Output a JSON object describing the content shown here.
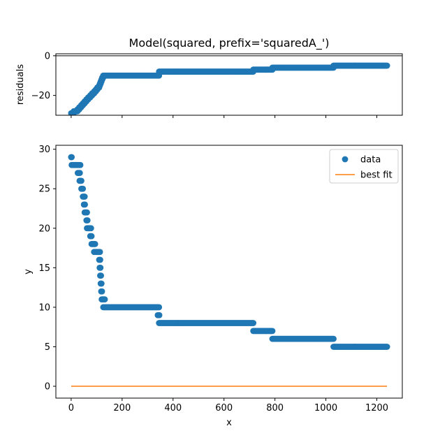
{
  "chart_data": [
    {
      "type": "scatter",
      "title": "Model(squared, prefix='squaredA_')",
      "xlabel": "",
      "ylabel": "residuals",
      "xlim": [
        -60,
        1300
      ],
      "ylim": [
        -30,
        1
      ],
      "xticks": [
        0,
        200,
        400,
        600,
        800,
        1000,
        1200
      ],
      "xtick_labels_visible": false,
      "yticks": [
        0,
        -20
      ],
      "ytick_labels": [
        "0",
        "−20"
      ],
      "zero_line": true,
      "series": [
        {
          "name": "",
          "color": "#1f77b4",
          "marker": "circle",
          "segments": [
            {
              "x_start": 0,
              "x_end": 10,
              "y": -29
            },
            {
              "x_start": 10,
              "x_end": 25,
              "y": -28
            },
            {
              "x_start": 25,
              "x_end": 32,
              "y": -27
            },
            {
              "x_start": 32,
              "x_end": 39,
              "y": -26
            },
            {
              "x_start": 39,
              "x_end": 46,
              "y": -25
            },
            {
              "x_start": 46,
              "x_end": 53,
              "y": -24
            },
            {
              "x_start": 53,
              "x_end": 60,
              "y": -23
            },
            {
              "x_start": 60,
              "x_end": 67,
              "y": -22
            },
            {
              "x_start": 67,
              "x_end": 75,
              "y": -21
            },
            {
              "x_start": 75,
              "x_end": 82,
              "y": -20
            },
            {
              "x_start": 82,
              "x_end": 90,
              "y": -19
            },
            {
              "x_start": 90,
              "x_end": 97,
              "y": -18
            },
            {
              "x_start": 97,
              "x_end": 103,
              "y": -17
            },
            {
              "x_start": 103,
              "x_end": 110,
              "y": -16
            },
            {
              "x_start": 110,
              "x_end": 113,
              "y": -15
            },
            {
              "x_start": 113,
              "x_end": 116,
              "y": -14
            },
            {
              "x_start": 116,
              "x_end": 119,
              "y": -13
            },
            {
              "x_start": 119,
              "x_end": 122,
              "y": -12
            },
            {
              "x_start": 122,
              "x_end": 126,
              "y": -11
            },
            {
              "x_start": 126,
              "x_end": 345,
              "y": -10
            },
            {
              "x_start": 345,
              "x_end": 715,
              "y": -8
            },
            {
              "x_start": 715,
              "x_end": 790,
              "y": -7
            },
            {
              "x_start": 790,
              "x_end": 1030,
              "y": -6
            },
            {
              "x_start": 1030,
              "x_end": 1240,
              "y": -5
            }
          ]
        }
      ]
    },
    {
      "type": "scatter",
      "title": "",
      "xlabel": "x",
      "ylabel": "y",
      "xlim": [
        -60,
        1300
      ],
      "ylim": [
        -1.5,
        30.5
      ],
      "xticks": [
        0,
        200,
        400,
        600,
        800,
        1000,
        1200
      ],
      "xtick_labels": [
        "0",
        "200",
        "400",
        "600",
        "800",
        "1000",
        "1200"
      ],
      "yticks": [
        0,
        5,
        10,
        15,
        20,
        25,
        30
      ],
      "ytick_labels": [
        "0",
        "5",
        "10",
        "15",
        "20",
        "25",
        "30"
      ],
      "legend": "top-right",
      "series": [
        {
          "name": "data",
          "color": "#1f77b4",
          "marker": "circle",
          "segments": [
            {
              "x_start": 0,
              "x_end": 2,
              "y": 29
            },
            {
              "x_start": 2,
              "x_end": 36,
              "y": 28
            },
            {
              "x_start": 26,
              "x_end": 34,
              "y": 27
            },
            {
              "x_start": 33,
              "x_end": 40,
              "y": 26
            },
            {
              "x_start": 40,
              "x_end": 46,
              "y": 25
            },
            {
              "x_start": 46,
              "x_end": 53,
              "y": 24
            },
            {
              "x_start": 50,
              "x_end": 54,
              "y": 23
            },
            {
              "x_start": 53,
              "x_end": 62,
              "y": 22
            },
            {
              "x_start": 60,
              "x_end": 64,
              "y": 21
            },
            {
              "x_start": 62,
              "x_end": 78,
              "y": 20
            },
            {
              "x_start": 75,
              "x_end": 80,
              "y": 19
            },
            {
              "x_start": 80,
              "x_end": 94,
              "y": 18
            },
            {
              "x_start": 90,
              "x_end": 113,
              "y": 17
            },
            {
              "x_start": 110,
              "x_end": 114,
              "y": 16
            },
            {
              "x_start": 112,
              "x_end": 115,
              "y": 15
            },
            {
              "x_start": 114,
              "x_end": 117,
              "y": 14
            },
            {
              "x_start": 116,
              "x_end": 119,
              "y": 13
            },
            {
              "x_start": 118,
              "x_end": 121,
              "y": 12
            },
            {
              "x_start": 120,
              "x_end": 132,
              "y": 11
            },
            {
              "x_start": 126,
              "x_end": 345,
              "y": 10
            },
            {
              "x_start": 340,
              "x_end": 346,
              "y": 9
            },
            {
              "x_start": 345,
              "x_end": 715,
              "y": 8
            },
            {
              "x_start": 715,
              "x_end": 790,
              "y": 7
            },
            {
              "x_start": 790,
              "x_end": 1030,
              "y": 6
            },
            {
              "x_start": 1030,
              "x_end": 1240,
              "y": 5
            }
          ]
        },
        {
          "name": "best fit",
          "color": "#ff7f0e",
          "marker": "line",
          "x": [
            0,
            1240
          ],
          "y": [
            0,
            0
          ]
        }
      ]
    }
  ]
}
